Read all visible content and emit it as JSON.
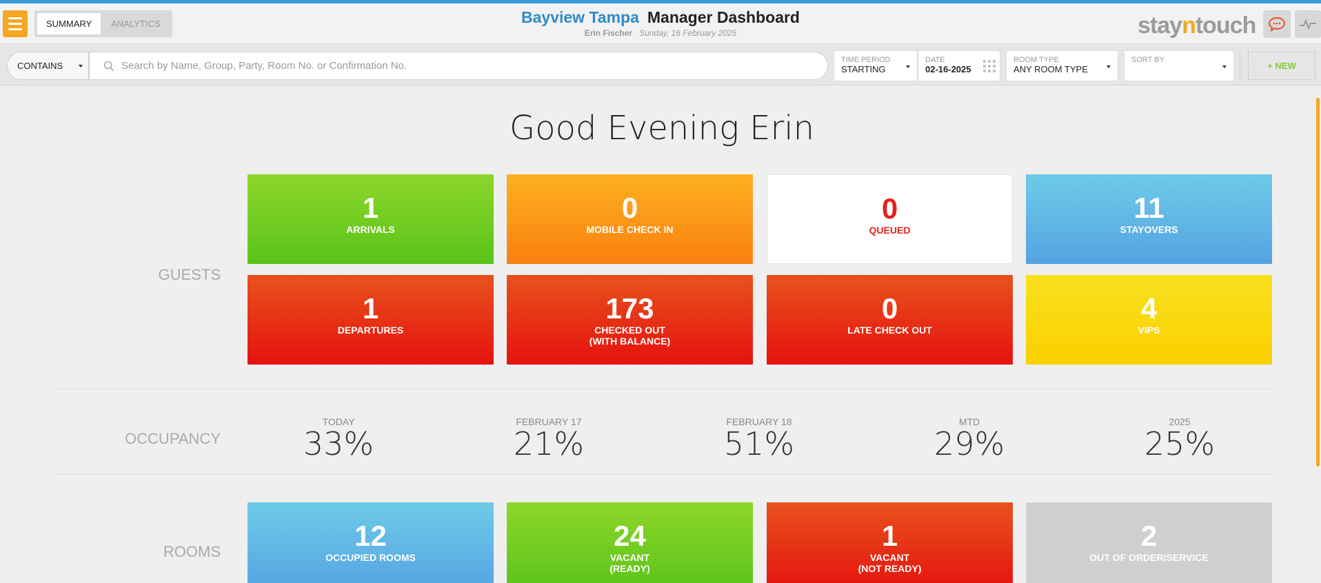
{
  "header": {
    "tabs": [
      {
        "label": "SUMMARY"
      },
      {
        "label": "ANALYTICS"
      }
    ],
    "hotel_name": "Bayview Tampa",
    "dashboard_title": "Manager Dashboard",
    "user_name": "Erin Fischer",
    "date": "Sunday, 16 February 2025",
    "logo": {
      "before": "stay",
      "accent": "n",
      "after": "touch"
    },
    "icons": [
      "menu-icon",
      "chat-icon",
      "activity-icon"
    ]
  },
  "search": {
    "mode": "CONTAINS",
    "placeholder": "Search by Name, Group, Party, Room No. or Confirmation No.",
    "time_period": {
      "label": "TIME PERIOD",
      "value": "STARTING"
    },
    "date": {
      "label": "DATE",
      "value": "02-16-2025"
    },
    "room_type": {
      "label": "ROOM TYPE",
      "value": "ANY ROOM TYPE"
    },
    "sort_by": {
      "label": "SORT BY",
      "value": ""
    },
    "new_label": "+ NEW"
  },
  "greeting": "Good Evening Erin",
  "guests": {
    "label": "GUESTS",
    "tiles": [
      {
        "value": "1",
        "label": "ARRIVALS",
        "color": "#6fcd22"
      },
      {
        "value": "0",
        "label": "MOBILE CHECK IN",
        "color": "#fb9a18"
      },
      {
        "value": "0",
        "label": "QUEUED",
        "color": "#ffffff"
      },
      {
        "value": "11",
        "label": "STAYOVERS",
        "color": "#60b5e5"
      },
      {
        "value": "1",
        "label": "DEPARTURES",
        "color": "#e63416"
      },
      {
        "value": "173",
        "label": "CHECKED OUT\n(WITH BALANCE)",
        "color": "#e63416"
      },
      {
        "value": "0",
        "label": "LATE CHECK OUT",
        "color": "#e63416"
      },
      {
        "value": "4",
        "label": "VIPS",
        "color": "#f9d80f"
      }
    ]
  },
  "occupancy": {
    "label": "OCCUPANCY",
    "items": [
      {
        "label": "TODAY",
        "value": "33%"
      },
      {
        "label": "FEBRUARY 17",
        "value": "21%"
      },
      {
        "label": "FEBRUARY 18",
        "value": "51%"
      },
      {
        "label": "MTD",
        "value": "29%"
      },
      {
        "label": "2025",
        "value": "25%"
      }
    ]
  },
  "rooms": {
    "label": "ROOMS",
    "tiles": [
      {
        "value": "12",
        "label": "OCCUPIED ROOMS",
        "color": "#60b5e5"
      },
      {
        "value": "24",
        "label": "VACANT\n(READY)",
        "color": "#6fcd22"
      },
      {
        "value": "1",
        "label": "VACANT\n(NOT READY)",
        "color": "#e63416"
      },
      {
        "value": "2",
        "label": "OUT OF ORDER/SERVICE",
        "color": "#cfcfcf"
      }
    ]
  }
}
